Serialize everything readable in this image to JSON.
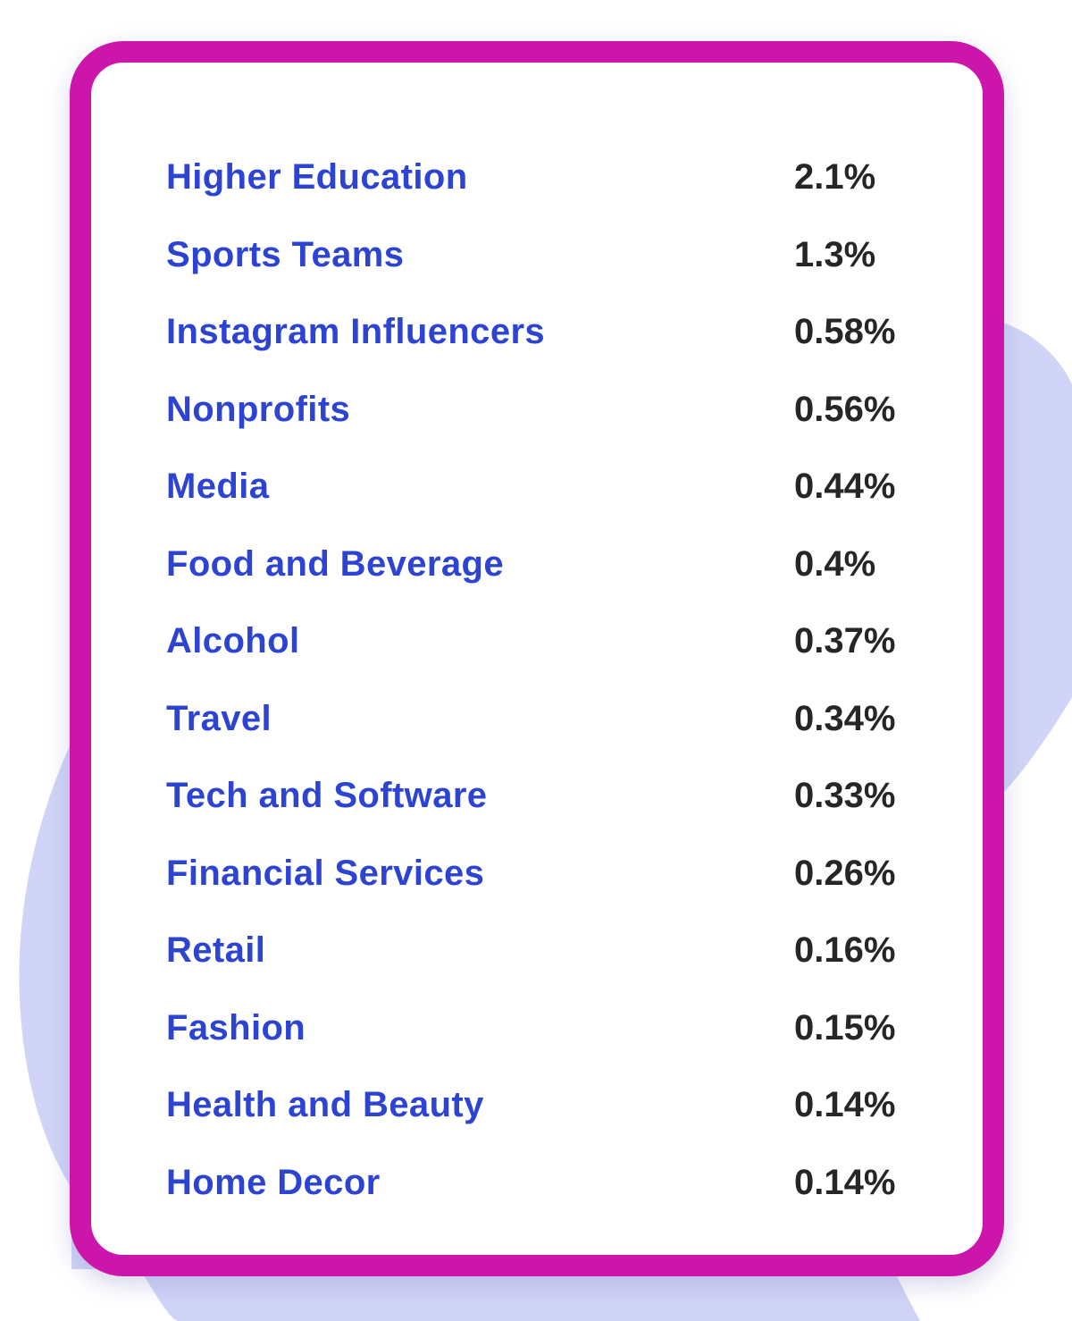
{
  "colors": {
    "accent_border": "#cc16ab",
    "label_text": "#2d44d3",
    "value_text": "#262626",
    "background_blob": "#d0d4f6"
  },
  "chart_data": {
    "type": "table",
    "categories": [
      "Higher Education",
      "Sports Teams",
      "Instagram Influencers",
      "Nonprofits",
      "Media",
      "Food and Beverage",
      "Alcohol",
      "Travel",
      "Tech and Software",
      "Financial Services",
      "Retail",
      "Fashion",
      "Health and Beauty",
      "Home Decor"
    ],
    "values": [
      2.1,
      1.3,
      0.58,
      0.56,
      0.44,
      0.4,
      0.37,
      0.34,
      0.33,
      0.26,
      0.16,
      0.15,
      0.14,
      0.14
    ],
    "value_labels": [
      "2.1%",
      "1.3%",
      "0.58%",
      "0.56%",
      "0.44%",
      "0.4%",
      "0.37%",
      "0.34%",
      "0.33%",
      "0.26%",
      "0.16%",
      "0.15%",
      "0.14%",
      "0.14%"
    ]
  }
}
